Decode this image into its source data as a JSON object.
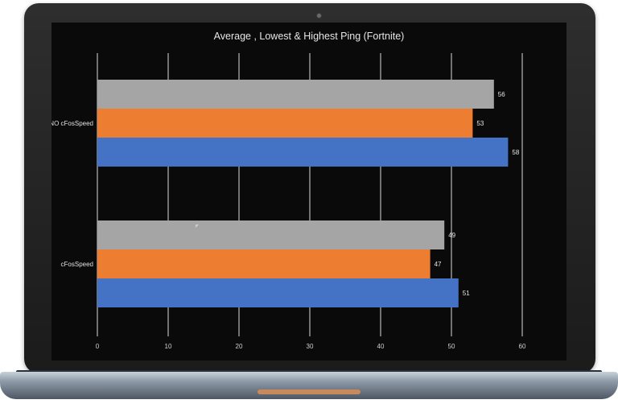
{
  "chart_data": {
    "type": "bar",
    "orientation": "horizontal",
    "title": "Average , Lowest & Highest Ping (Fortnite)",
    "categories": [
      "NO cFosSpeed",
      "cFosSpeed"
    ],
    "series": [
      {
        "color": "#a5a5a5",
        "values": [
          56,
          49
        ]
      },
      {
        "color": "#ed7d31",
        "values": [
          53,
          47
        ]
      },
      {
        "color": "#4472c4",
        "values": [
          58,
          51
        ]
      }
    ],
    "xlim": [
      0,
      60
    ],
    "xticks": [
      "0",
      "10",
      "20",
      "30",
      "40",
      "50",
      "60"
    ],
    "grid": true,
    "legend": "none"
  }
}
